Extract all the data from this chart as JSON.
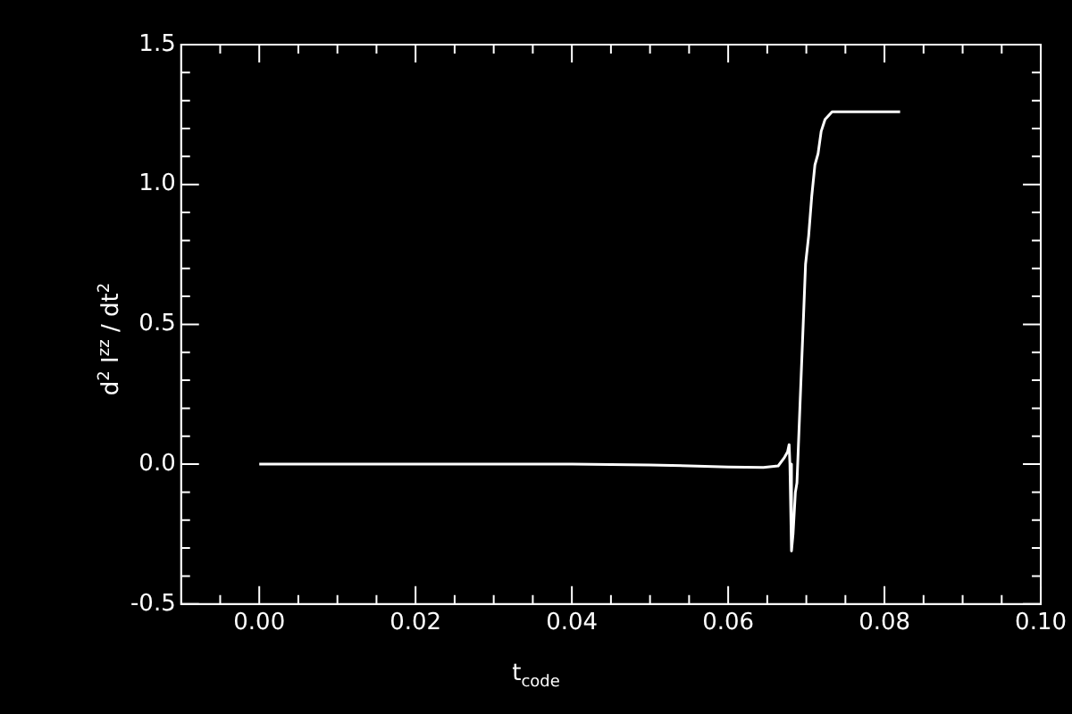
{
  "chart_data": {
    "type": "line",
    "xlabel": "t$_{code}$",
    "ylabel": "d$^{2}$ I$^{zz}$ / dt$^{2}$",
    "series": [
      {
        "color": "#ffffff",
        "x": [
          0,
          0.01,
          0.02,
          0.03,
          0.04,
          0.05,
          0.055,
          0.06,
          0.0645,
          0.0664,
          0.0672,
          0.0676,
          0.0678,
          0.0679,
          0.0681,
          0.0683,
          0.0686,
          0.0688,
          0.0692,
          0.0694,
          0.0696,
          0.0699,
          0.0703,
          0.0707,
          0.0711,
          0.0715,
          0.0719,
          0.0724,
          0.0733,
          0.075,
          0.082
        ],
        "values": [
          0,
          0,
          0,
          0,
          0,
          -0.003,
          -0.006,
          -0.01,
          -0.012,
          -0.006,
          0.024,
          0.044,
          0.07,
          0.0,
          -0.31,
          -0.25,
          -0.1,
          -0.067,
          0.218,
          0.36,
          0.5,
          0.715,
          0.817,
          0.96,
          1.07,
          1.11,
          1.19,
          1.233,
          1.26,
          1.26,
          1.26
        ]
      }
    ],
    "xlim": [
      -0.01,
      0.1
    ],
    "xticks": [
      {
        "value": -0.005,
        "label": null
      },
      {
        "value": 0,
        "label": "0.00"
      },
      {
        "value": 0.005,
        "label": null
      },
      {
        "value": 0.01,
        "label": null
      },
      {
        "value": 0.015,
        "label": null
      },
      {
        "value": 0.02,
        "label": "0.02"
      },
      {
        "value": 0.025,
        "label": null
      },
      {
        "value": 0.03,
        "label": null
      },
      {
        "value": 0.035,
        "label": null
      },
      {
        "value": 0.04,
        "label": "0.04"
      },
      {
        "value": 0.045,
        "label": null
      },
      {
        "value": 0.05,
        "label": null
      },
      {
        "value": 0.055,
        "label": null
      },
      {
        "value": 0.06,
        "label": "0.06"
      },
      {
        "value": 0.065,
        "label": null
      },
      {
        "value": 0.07,
        "label": null
      },
      {
        "value": 0.075,
        "label": null
      },
      {
        "value": 0.08,
        "label": "0.08"
      },
      {
        "value": 0.085,
        "label": null
      },
      {
        "value": 0.09,
        "label": null
      },
      {
        "value": 0.095,
        "label": null
      },
      {
        "value": 0.1,
        "label": "0.10"
      }
    ],
    "ylim": [
      -0.5,
      1.5
    ],
    "yticks": [
      {
        "value": -0.5,
        "label": "-0.5"
      },
      {
        "value": -0.4,
        "label": null
      },
      {
        "value": -0.3,
        "label": null
      },
      {
        "value": -0.2,
        "label": null
      },
      {
        "value": -0.1,
        "label": null
      },
      {
        "value": 0,
        "label": "0.0"
      },
      {
        "value": 0.1,
        "label": null
      },
      {
        "value": 0.2,
        "label": null
      },
      {
        "value": 0.3,
        "label": null
      },
      {
        "value": 0.4,
        "label": null
      },
      {
        "value": 0.5,
        "label": "0.5"
      },
      {
        "value": 0.6,
        "label": null
      },
      {
        "value": 0.7,
        "label": null
      },
      {
        "value": 0.8,
        "label": null
      },
      {
        "value": 0.9,
        "label": null
      },
      {
        "value": 1.0,
        "label": "1.0"
      },
      {
        "value": 1.1,
        "label": null
      },
      {
        "value": 1.2,
        "label": null
      },
      {
        "value": 1.3,
        "label": null
      },
      {
        "value": 1.4,
        "label": null
      },
      {
        "value": 1.5,
        "label": "1.5"
      }
    ],
    "grid": false,
    "legend": false,
    "marker": "none",
    "line_style": "solid"
  }
}
